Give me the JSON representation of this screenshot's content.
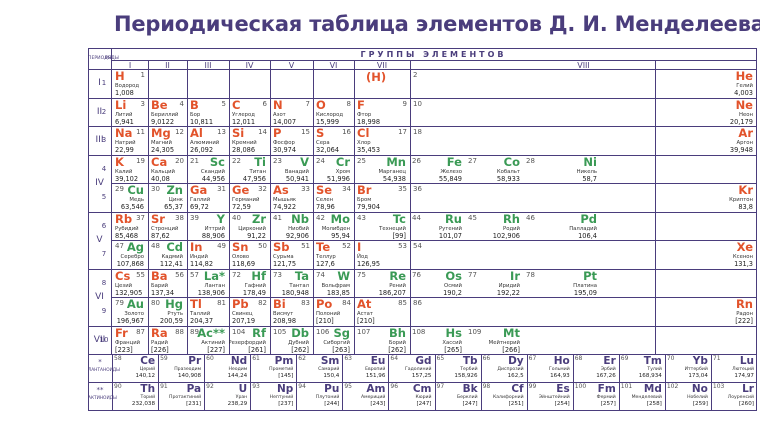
{
  "title": "Периодическая таблица элементов Д. И. Менделеева",
  "header": {
    "periods": "ПЕРИОДЫ",
    "rows": "РЯДЫ",
    "groups_title": "ГРУППЫ ЭЛЕМЕНТОВ",
    "groups": [
      "I",
      "II",
      "III",
      "IV",
      "V",
      "VI",
      "VII",
      "VIII"
    ]
  },
  "periods": [
    "I",
    "II",
    "III",
    "IV",
    "V",
    "VI",
    "VII"
  ],
  "rows": [
    "1",
    "2",
    "3",
    "4",
    "5",
    "6",
    "7",
    "8",
    "9",
    "10"
  ],
  "h_placeholder": "(H)",
  "lanthanides_label": "ЛАНТАНОИДЫ",
  "actinides_label": "АКТИНОИДЫ",
  "lan_mark": "*",
  "act_mark": "**",
  "colors": {
    "s": "#e2532b",
    "p": "#e2532b",
    "d": "#3a9a55",
    "f": "#4a3d7c",
    "line": "#4a3d7c",
    "title": "#4a3d7c"
  },
  "elements": [
    {
      "s": "H",
      "n": 1,
      "name": "Водород",
      "m": "1,008",
      "r": 1,
      "g": 1,
      "side": "L",
      "t": "s"
    },
    {
      "s": "He",
      "n": 2,
      "name": "Гелий",
      "m": "4,003",
      "r": 1,
      "g": 8,
      "side": "R",
      "t": "s"
    },
    {
      "s": "Li",
      "n": 3,
      "name": "Литий",
      "m": "6,941",
      "r": 2,
      "g": 1,
      "side": "L",
      "t": "s"
    },
    {
      "s": "Be",
      "n": 4,
      "name": "Бериллий",
      "m": "9,0122",
      "r": 2,
      "g": 2,
      "side": "L",
      "t": "s"
    },
    {
      "s": "B",
      "n": 5,
      "name": "Бор",
      "m": "10,811",
      "r": 2,
      "g": 3,
      "side": "L",
      "t": "p"
    },
    {
      "s": "C",
      "n": 6,
      "name": "Углерод",
      "m": "12,011",
      "r": 2,
      "g": 4,
      "side": "L",
      "t": "p"
    },
    {
      "s": "N",
      "n": 7,
      "name": "Азот",
      "m": "14,007",
      "r": 2,
      "g": 5,
      "side": "L",
      "t": "p"
    },
    {
      "s": "O",
      "n": 8,
      "name": "Кислород",
      "m": "15,999",
      "r": 2,
      "g": 6,
      "side": "L",
      "t": "p"
    },
    {
      "s": "F",
      "n": 9,
      "name": "Фтор",
      "m": "18,998",
      "r": 2,
      "g": 7,
      "side": "L",
      "t": "p"
    },
    {
      "s": "Ne",
      "n": 10,
      "name": "Неон",
      "m": "20,179",
      "r": 2,
      "g": 8,
      "side": "R",
      "t": "p"
    },
    {
      "s": "Na",
      "n": 11,
      "name": "Натрий",
      "m": "22,99",
      "r": 3,
      "g": 1,
      "side": "L",
      "t": "s"
    },
    {
      "s": "Mg",
      "n": 12,
      "name": "Магний",
      "m": "24,305",
      "r": 3,
      "g": 2,
      "side": "L",
      "t": "s"
    },
    {
      "s": "Al",
      "n": 13,
      "name": "Алюминий",
      "m": "26,092",
      "r": 3,
      "g": 3,
      "side": "L",
      "t": "p"
    },
    {
      "s": "Si",
      "n": 14,
      "name": "Кремний",
      "m": "28,086",
      "r": 3,
      "g": 4,
      "side": "L",
      "t": "p"
    },
    {
      "s": "P",
      "n": 15,
      "name": "Фосфор",
      "m": "30,974",
      "r": 3,
      "g": 5,
      "side": "L",
      "t": "p"
    },
    {
      "s": "S",
      "n": 16,
      "name": "Сера",
      "m": "32,064",
      "r": 3,
      "g": 6,
      "side": "L",
      "t": "p"
    },
    {
      "s": "Cl",
      "n": 17,
      "name": "Хлор",
      "m": "35,453",
      "r": 3,
      "g": 7,
      "side": "L",
      "t": "p"
    },
    {
      "s": "Ar",
      "n": 18,
      "name": "Аргон",
      "m": "39,948",
      "r": 3,
      "g": 8,
      "side": "R",
      "t": "p"
    },
    {
      "s": "K",
      "n": 19,
      "name": "Калий",
      "m": "39,102",
      "r": 4,
      "g": 1,
      "side": "L",
      "t": "s"
    },
    {
      "s": "Ca",
      "n": 20,
      "name": "Кальций",
      "m": "40,08",
      "r": 4,
      "g": 2,
      "side": "L",
      "t": "s"
    },
    {
      "s": "Sc",
      "n": 21,
      "name": "Скандий",
      "m": "44,956",
      "r": 4,
      "g": 3,
      "side": "R",
      "t": "d"
    },
    {
      "s": "Ti",
      "n": 22,
      "name": "Титан",
      "m": "47,956",
      "r": 4,
      "g": 4,
      "side": "R",
      "t": "d"
    },
    {
      "s": "V",
      "n": 23,
      "name": "Ванадий",
      "m": "50,941",
      "r": 4,
      "g": 5,
      "side": "R",
      "t": "d"
    },
    {
      "s": "Cr",
      "n": 24,
      "name": "Хром",
      "m": "51,996",
      "r": 4,
      "g": 6,
      "side": "R",
      "t": "d"
    },
    {
      "s": "Mn",
      "n": 25,
      "name": "Марганец",
      "m": "54,938",
      "r": 4,
      "g": 7,
      "side": "R",
      "t": "d"
    },
    {
      "s": "Fe",
      "n": 26,
      "name": "Железо",
      "m": "55,849",
      "r": 4,
      "g": 8,
      "sub": 0,
      "t": "d"
    },
    {
      "s": "Co",
      "n": 27,
      "name": "Кобальт",
      "m": "58,933",
      "r": 4,
      "g": 8,
      "sub": 1,
      "t": "d"
    },
    {
      "s": "Ni",
      "n": 28,
      "name": "Никель",
      "m": "58,7",
      "r": 4,
      "g": 8,
      "sub": 2,
      "t": "d"
    },
    {
      "s": "Cu",
      "n": 29,
      "name": "Медь",
      "m": "63,546",
      "r": 5,
      "g": 1,
      "side": "R",
      "t": "d"
    },
    {
      "s": "Zn",
      "n": 30,
      "name": "Цинк",
      "m": "65,37",
      "r": 5,
      "g": 2,
      "side": "R",
      "t": "d"
    },
    {
      "s": "Ga",
      "n": 31,
      "name": "Галлий",
      "m": "69,72",
      "r": 5,
      "g": 3,
      "side": "L",
      "t": "p"
    },
    {
      "s": "Ge",
      "n": 32,
      "name": "Германий",
      "m": "72,59",
      "r": 5,
      "g": 4,
      "side": "L",
      "t": "p"
    },
    {
      "s": "As",
      "n": 33,
      "name": "Мышьяк",
      "m": "74,922",
      "r": 5,
      "g": 5,
      "side": "L",
      "t": "p"
    },
    {
      "s": "Se",
      "n": 34,
      "name": "Селен",
      "m": "78,96",
      "r": 5,
      "g": 6,
      "side": "L",
      "t": "p"
    },
    {
      "s": "Br",
      "n": 35,
      "name": "Бром",
      "m": "79,904",
      "r": 5,
      "g": 7,
      "side": "L",
      "t": "p"
    },
    {
      "s": "Kr",
      "n": 36,
      "name": "Криптон",
      "m": "83,8",
      "r": 5,
      "g": 8,
      "side": "R",
      "t": "p"
    },
    {
      "s": "Rb",
      "n": 37,
      "name": "Рубидий",
      "m": "85,468",
      "r": 6,
      "g": 1,
      "side": "L",
      "t": "s"
    },
    {
      "s": "Sr",
      "n": 38,
      "name": "Стронций",
      "m": "87,62",
      "r": 6,
      "g": 2,
      "side": "L",
      "t": "s"
    },
    {
      "s": "Y",
      "n": 39,
      "name": "Иттрий",
      "m": "88,906",
      "r": 6,
      "g": 3,
      "side": "R",
      "t": "d"
    },
    {
      "s": "Zr",
      "n": 40,
      "name": "Цирконий",
      "m": "91,22",
      "r": 6,
      "g": 4,
      "side": "R",
      "t": "d"
    },
    {
      "s": "Nb",
      "n": 41,
      "name": "Ниобий",
      "m": "92,906",
      "r": 6,
      "g": 5,
      "side": "R",
      "t": "d"
    },
    {
      "s": "Mo",
      "n": 42,
      "name": "Молибден",
      "m": "95,94",
      "r": 6,
      "g": 6,
      "side": "R",
      "t": "d"
    },
    {
      "s": "Tc",
      "n": 43,
      "name": "Технеций",
      "m": "[99]",
      "r": 6,
      "g": 7,
      "side": "R",
      "t": "d"
    },
    {
      "s": "Ru",
      "n": 44,
      "name": "Рутений",
      "m": "101,07",
      "r": 6,
      "g": 8,
      "sub": 0,
      "t": "d"
    },
    {
      "s": "Rh",
      "n": 45,
      "name": "Родий",
      "m": "102,906",
      "r": 6,
      "g": 8,
      "sub": 1,
      "t": "d"
    },
    {
      "s": "Pd",
      "n": 46,
      "name": "Палладий",
      "m": "106,4",
      "r": 6,
      "g": 8,
      "sub": 2,
      "t": "d"
    },
    {
      "s": "Ag",
      "n": 47,
      "name": "Серебро",
      "m": "107,868",
      "r": 7,
      "g": 1,
      "side": "R",
      "t": "d"
    },
    {
      "s": "Cd",
      "n": 48,
      "name": "Кадмий",
      "m": "112,41",
      "r": 7,
      "g": 2,
      "side": "R",
      "t": "d"
    },
    {
      "s": "In",
      "n": 49,
      "name": "Индий",
      "m": "114,82",
      "r": 7,
      "g": 3,
      "side": "L",
      "t": "p"
    },
    {
      "s": "Sn",
      "n": 50,
      "name": "Олово",
      "m": "118,69",
      "r": 7,
      "g": 4,
      "side": "L",
      "t": "p"
    },
    {
      "s": "Sb",
      "n": 51,
      "name": "Сурьма",
      "m": "121,75",
      "r": 7,
      "g": 5,
      "side": "L",
      "t": "p"
    },
    {
      "s": "Te",
      "n": 52,
      "name": "Теллур",
      "m": "127,6",
      "r": 7,
      "g": 6,
      "side": "L",
      "t": "p"
    },
    {
      "s": "I",
      "n": 53,
      "name": "Йод",
      "m": "126,95",
      "r": 7,
      "g": 7,
      "side": "L",
      "t": "p"
    },
    {
      "s": "Xe",
      "n": 54,
      "name": "Ксенон",
      "m": "131,3",
      "r": 7,
      "g": 8,
      "side": "R",
      "t": "p"
    },
    {
      "s": "Cs",
      "n": 55,
      "name": "Цезий",
      "m": "132,905",
      "r": 8,
      "g": 1,
      "side": "L",
      "t": "s"
    },
    {
      "s": "Ba",
      "n": 56,
      "name": "Барий",
      "m": "137,34",
      "r": 8,
      "g": 2,
      "side": "L",
      "t": "s"
    },
    {
      "s": "La*",
      "n": 57,
      "name": "Лантан",
      "m": "138,906",
      "r": 8,
      "g": 3,
      "side": "R",
      "t": "d"
    },
    {
      "s": "Hf",
      "n": 72,
      "name": "Гафний",
      "m": "178,49",
      "r": 8,
      "g": 4,
      "side": "R",
      "t": "d"
    },
    {
      "s": "Ta",
      "n": 73,
      "name": "Тантал",
      "m": "180,948",
      "r": 8,
      "g": 5,
      "side": "R",
      "t": "d"
    },
    {
      "s": "W",
      "n": 74,
      "name": "Вольфрам",
      "m": "183,85",
      "r": 8,
      "g": 6,
      "side": "R",
      "t": "d"
    },
    {
      "s": "Re",
      "n": 75,
      "name": "Рений",
      "m": "186,207",
      "r": 8,
      "g": 7,
      "side": "R",
      "t": "d"
    },
    {
      "s": "Os",
      "n": 76,
      "name": "Осмий",
      "m": "190,2",
      "r": 8,
      "g": 8,
      "sub": 0,
      "t": "d"
    },
    {
      "s": "Ir",
      "n": 77,
      "name": "Иридий",
      "m": "192,22",
      "r": 8,
      "g": 8,
      "sub": 1,
      "t": "d"
    },
    {
      "s": "Pt",
      "n": 78,
      "name": "Платина",
      "m": "195,09",
      "r": 8,
      "g": 8,
      "sub": 2,
      "t": "d"
    },
    {
      "s": "Au",
      "n": 79,
      "name": "Золото",
      "m": "196,967",
      "r": 9,
      "g": 1,
      "side": "R",
      "t": "d"
    },
    {
      "s": "Hg",
      "n": 80,
      "name": "Ртуть",
      "m": "200,59",
      "r": 9,
      "g": 2,
      "side": "R",
      "t": "d"
    },
    {
      "s": "Tl",
      "n": 81,
      "name": "Таллий",
      "m": "204,37",
      "r": 9,
      "g": 3,
      "side": "L",
      "t": "p"
    },
    {
      "s": "Pb",
      "n": 82,
      "name": "Свинец",
      "m": "207,19",
      "r": 9,
      "g": 4,
      "side": "L",
      "t": "p"
    },
    {
      "s": "Bi",
      "n": 83,
      "name": "Висмут",
      "m": "208,98",
      "r": 9,
      "g": 5,
      "side": "L",
      "t": "p"
    },
    {
      "s": "Po",
      "n": 84,
      "name": "Полоний",
      "m": "[210]",
      "r": 9,
      "g": 6,
      "side": "L",
      "t": "p"
    },
    {
      "s": "At",
      "n": 85,
      "name": "Астат",
      "m": "[210]",
      "r": 9,
      "g": 7,
      "side": "L",
      "t": "p"
    },
    {
      "s": "Rn",
      "n": 86,
      "name": "Радон",
      "m": "[222]",
      "r": 9,
      "g": 8,
      "side": "R",
      "t": "p"
    },
    {
      "s": "Fr",
      "n": 87,
      "name": "Франций",
      "m": "[223]",
      "r": 10,
      "g": 1,
      "side": "L",
      "t": "s"
    },
    {
      "s": "Ra",
      "n": 88,
      "name": "Радий",
      "m": "[226]",
      "r": 10,
      "g": 2,
      "side": "L",
      "t": "s"
    },
    {
      "s": "Ac**",
      "n": 89,
      "name": "Актиний",
      "m": "[227]",
      "r": 10,
      "g": 3,
      "side": "R",
      "t": "d"
    },
    {
      "s": "Rf",
      "n": 104,
      "name": "Резерфордий",
      "m": "[261]",
      "r": 10,
      "g": 4,
      "side": "R",
      "t": "d"
    },
    {
      "s": "Db",
      "n": 105,
      "name": "Дубний",
      "m": "[262]",
      "r": 10,
      "g": 5,
      "side": "R",
      "t": "d"
    },
    {
      "s": "Sg",
      "n": 106,
      "name": "Сиборгий",
      "m": "[263]",
      "r": 10,
      "g": 6,
      "side": "R",
      "t": "d"
    },
    {
      "s": "Bh",
      "n": 107,
      "name": "Борий",
      "m": "[262]",
      "r": 10,
      "g": 7,
      "side": "R",
      "t": "d"
    },
    {
      "s": "Hs",
      "n": 108,
      "name": "Хассий",
      "m": "[265]",
      "r": 10,
      "g": 8,
      "sub": 0,
      "t": "d"
    },
    {
      "s": "Mt",
      "n": 109,
      "name": "Мейтнерий",
      "m": "[266]",
      "r": 10,
      "g": 8,
      "sub": 1,
      "t": "d"
    }
  ],
  "lanthanides": [
    {
      "s": "Ce",
      "n": 58,
      "name": "Церий",
      "m": "140,12"
    },
    {
      "s": "Pr",
      "n": 59,
      "name": "Празеодим",
      "m": "140,908"
    },
    {
      "s": "Nd",
      "n": 60,
      "name": "Неодим",
      "m": "144,24"
    },
    {
      "s": "Pm",
      "n": 61,
      "name": "Прометий",
      "m": "[145]"
    },
    {
      "s": "Sm",
      "n": 62,
      "name": "Самарий",
      "m": "150,4"
    },
    {
      "s": "Eu",
      "n": 63,
      "name": "Европий",
      "m": "151,96"
    },
    {
      "s": "Gd",
      "n": 64,
      "name": "Гадолиний",
      "m": "157,25"
    },
    {
      "s": "Tb",
      "n": 65,
      "name": "Тербий",
      "m": "158,926"
    },
    {
      "s": "Dy",
      "n": 66,
      "name": "Диспрозий",
      "m": "162,5"
    },
    {
      "s": "Ho",
      "n": 67,
      "name": "Гольмий",
      "m": "164,93"
    },
    {
      "s": "Er",
      "n": 68,
      "name": "Эрбий",
      "m": "167,26"
    },
    {
      "s": "Tm",
      "n": 69,
      "name": "Тулий",
      "m": "168,934"
    },
    {
      "s": "Yb",
      "n": 70,
      "name": "Иттербий",
      "m": "173,04"
    },
    {
      "s": "Lu",
      "n": 71,
      "name": "Лютеций",
      "m": "174,97"
    }
  ],
  "actinides": [
    {
      "s": "Th",
      "n": 90,
      "name": "Торий",
      "m": "232,038"
    },
    {
      "s": "Pa",
      "n": 91,
      "name": "Протактиний",
      "m": "[231]"
    },
    {
      "s": "U",
      "n": 92,
      "name": "Уран",
      "m": "238,29"
    },
    {
      "s": "Np",
      "n": 93,
      "name": "Нептуний",
      "m": "[237]"
    },
    {
      "s": "Pu",
      "n": 94,
      "name": "Плутоний",
      "m": "[244]"
    },
    {
      "s": "Am",
      "n": 95,
      "name": "Америций",
      "m": "[243]"
    },
    {
      "s": "Cm",
      "n": 96,
      "name": "Кюрий",
      "m": "[247]"
    },
    {
      "s": "Bk",
      "n": 97,
      "name": "Берклий",
      "m": "[247]"
    },
    {
      "s": "Cf",
      "n": 98,
      "name": "Калифорний",
      "m": "[251]"
    },
    {
      "s": "Es",
      "n": 99,
      "name": "Эйнштейний",
      "m": "[254]"
    },
    {
      "s": "Fm",
      "n": 100,
      "name": "Фермий",
      "m": "[257]"
    },
    {
      "s": "Md",
      "n": 101,
      "name": "Менделевий",
      "m": "[258]"
    },
    {
      "s": "No",
      "n": 102,
      "name": "Нобелий",
      "m": "[259]"
    },
    {
      "s": "Lr",
      "n": 103,
      "name": "Лоуренсий",
      "m": "[260]"
    }
  ]
}
